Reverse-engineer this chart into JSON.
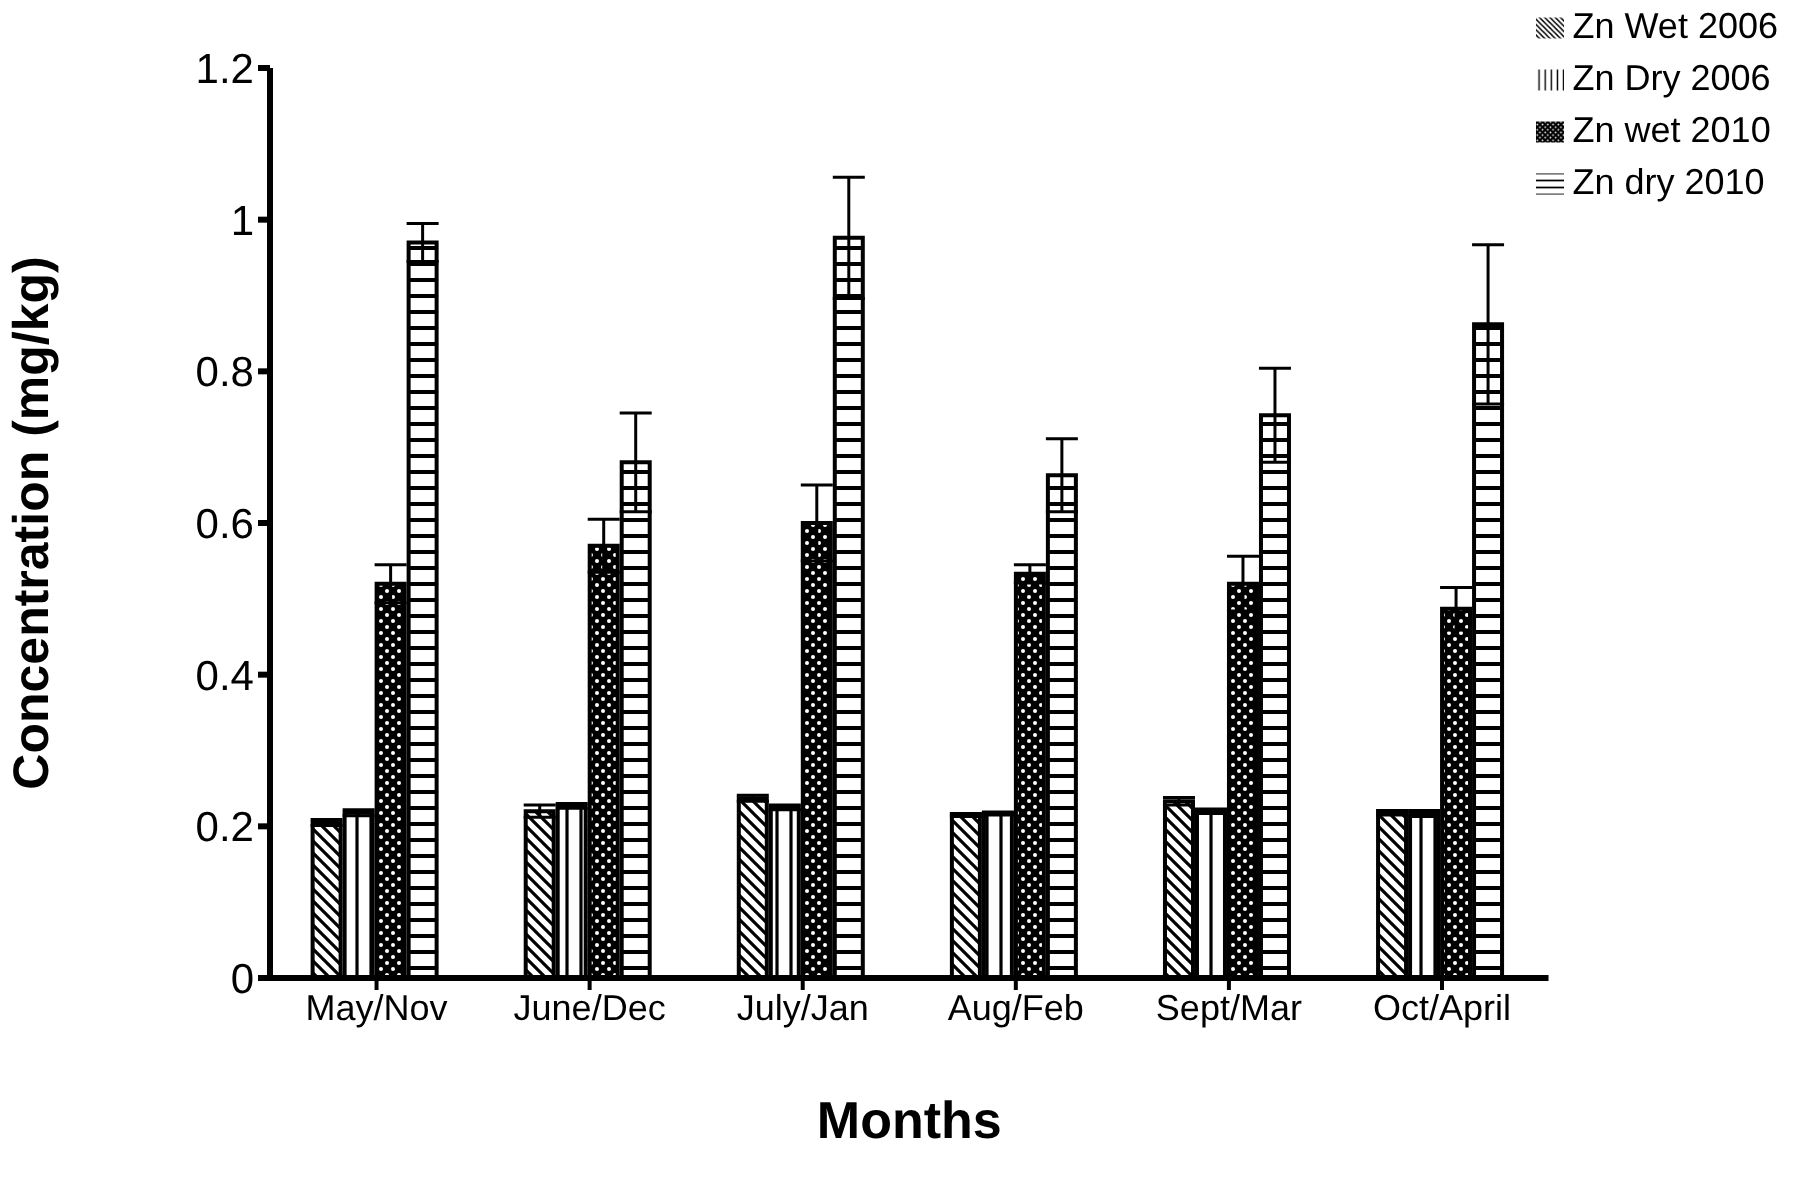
{
  "chart_data": {
    "type": "bar",
    "xlabel": "Months",
    "ylabel": "Concentration (mg/kg)",
    "categories": [
      "May/Nov",
      "June/Dec",
      "July/Jan",
      "Aug/Feb",
      "Sept/Mar",
      "Oct/April"
    ],
    "series": [
      {
        "name": "Zn Wet 2006",
        "color": "#000000",
        "values": [
          0.205,
          0.22,
          0.237,
          0.215,
          0.233,
          0.218
        ],
        "errors": [
          0.004,
          0.008,
          0.004,
          0.002,
          0.005,
          0.003
        ]
      },
      {
        "name": "Zn Dry 2006",
        "color": "#000000",
        "values": [
          0.218,
          0.227,
          0.225,
          0.217,
          0.22,
          0.217
        ],
        "errors": [
          0.004,
          0.003,
          0.003,
          0.002,
          0.003,
          0.004
        ]
      },
      {
        "name": "Zn wet 2010",
        "color": "#000000",
        "values": [
          0.52,
          0.57,
          0.6,
          0.533,
          0.52,
          0.487
        ],
        "errors": [
          0.025,
          0.035,
          0.05,
          0.012,
          0.036,
          0.028
        ]
      },
      {
        "name": "Zn dry 2010",
        "color": "#000000",
        "values": [
          0.97,
          0.68,
          0.976,
          0.663,
          0.742,
          0.862
        ],
        "errors": [
          0.025,
          0.065,
          0.08,
          0.048,
          0.062,
          0.105
        ]
      }
    ],
    "ylim": [
      0,
      1.2
    ],
    "yticks": [
      0,
      0.2,
      0.4,
      0.6,
      0.8,
      1,
      1.2
    ],
    "grid": false,
    "legend": "top right"
  }
}
